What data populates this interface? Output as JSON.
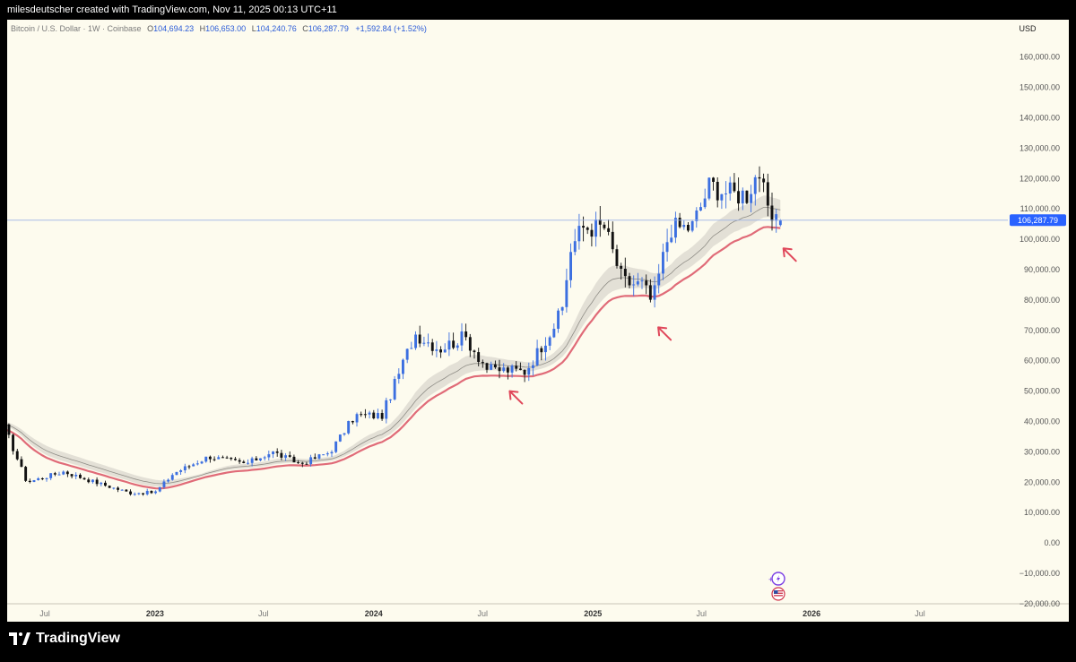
{
  "header": {
    "credit": "milesdeutscher created with TradingView.com, Nov 11, 2025 00:13 UTC+11"
  },
  "legend": {
    "symbol": "Bitcoin / U.S. Dollar · 1W · Coinbase",
    "open_label": "O",
    "open": "104,694.23",
    "high_label": "H",
    "high": "106,653.00",
    "low_label": "L",
    "low": "104,240.76",
    "close_label": "C",
    "close": "106,287.79",
    "change": "+1,592.84 (+1.52%)"
  },
  "price_axis": {
    "currency": "USD",
    "current_price": "106,287.79",
    "ticks": [
      "160,000.00",
      "150,000.00",
      "140,000.00",
      "130,000.00",
      "120,000.00",
      "110,000.00",
      "100,000.00",
      "90,000.00",
      "80,000.00",
      "70,000.00",
      "60,000.00",
      "50,000.00",
      "40,000.00",
      "30,000.00",
      "20,000.00",
      "10,000.00",
      "0.00",
      "−10,000.00",
      "−20,000.00"
    ]
  },
  "time_axis": {
    "ticks": [
      "Jul",
      "2023",
      "Jul",
      "2024",
      "Jul",
      "2025",
      "Jul",
      "2026",
      "Jul"
    ]
  },
  "footer": {
    "brand": "TradingView"
  },
  "colors": {
    "up": "#3c6fe0",
    "down": "#111111",
    "ema_red": "#e06b78",
    "band": "#d9d7cf",
    "background": "#fdfbee"
  },
  "chart_data": {
    "type": "candlestick",
    "title": "",
    "xlabel": "",
    "ylabel": "",
    "ylim": [
      -20000,
      160000
    ],
    "y_ticks": [
      160000,
      150000,
      140000,
      130000,
      120000,
      110000,
      100000,
      90000,
      80000,
      70000,
      60000,
      50000,
      40000,
      30000,
      20000,
      10000,
      0,
      -10000,
      -20000
    ],
    "x_ticks": [
      {
        "label": "Jul",
        "date": "2022-07-01"
      },
      {
        "label": "2023",
        "date": "2023-01-01"
      },
      {
        "label": "Jul",
        "date": "2023-07-01"
      },
      {
        "label": "2024",
        "date": "2024-01-01"
      },
      {
        "label": "Jul",
        "date": "2024-07-01"
      },
      {
        "label": "2025",
        "date": "2025-01-01"
      },
      {
        "label": "Jul",
        "date": "2025-07-01"
      },
      {
        "label": "2026",
        "date": "2026-01-01"
      },
      {
        "label": "Jul",
        "date": "2026-07-01"
      }
    ],
    "x_range": [
      "2022-04-25",
      "2026-10-01"
    ],
    "last_price": 106287.79,
    "series": [
      {
        "date": "2022-04-25",
        "close": 38000
      },
      {
        "date": "2022-06-01",
        "close": 20000
      },
      {
        "date": "2022-08-01",
        "close": 23500
      },
      {
        "date": "2022-10-01",
        "close": 19500
      },
      {
        "date": "2022-11-20",
        "close": 16500
      },
      {
        "date": "2023-01-01",
        "close": 16600
      },
      {
        "date": "2023-02-01",
        "close": 23000
      },
      {
        "date": "2023-04-01",
        "close": 28500
      },
      {
        "date": "2023-06-01",
        "close": 26000
      },
      {
        "date": "2023-07-15",
        "close": 30000
      },
      {
        "date": "2023-09-01",
        "close": 26000
      },
      {
        "date": "2023-10-20",
        "close": 30000
      },
      {
        "date": "2023-12-01",
        "close": 42000
      },
      {
        "date": "2024-01-15",
        "close": 42000
      },
      {
        "date": "2024-03-10",
        "close": 69000
      },
      {
        "date": "2024-04-20",
        "close": 64000
      },
      {
        "date": "2024-06-01",
        "close": 68000
      },
      {
        "date": "2024-07-10",
        "close": 57000
      },
      {
        "date": "2024-08-10",
        "close": 57000
      },
      {
        "date": "2024-09-10",
        "close": 56500
      },
      {
        "date": "2024-10-01",
        "close": 63000
      },
      {
        "date": "2024-11-10",
        "close": 76000
      },
      {
        "date": "2024-11-25",
        "close": 97000
      },
      {
        "date": "2024-12-15",
        "close": 104000
      },
      {
        "date": "2025-01-20",
        "close": 104000
      },
      {
        "date": "2025-02-20",
        "close": 86000
      },
      {
        "date": "2025-03-25",
        "close": 85000
      },
      {
        "date": "2025-04-10",
        "close": 79000
      },
      {
        "date": "2025-05-10",
        "close": 104000
      },
      {
        "date": "2025-06-15",
        "close": 104000
      },
      {
        "date": "2025-07-15",
        "close": 118000
      },
      {
        "date": "2025-08-20",
        "close": 115000
      },
      {
        "date": "2025-09-15",
        "close": 115000
      },
      {
        "date": "2025-10-05",
        "close": 123000
      },
      {
        "date": "2025-10-20",
        "close": 108000
      },
      {
        "date": "2025-11-03",
        "close": 104700
      },
      {
        "date": "2025-11-10",
        "open": 104694.23,
        "high": 106653.0,
        "low": 104240.76,
        "close": 106287.79
      }
    ],
    "annotations": [
      {
        "type": "arrow",
        "date": "2024-08-15",
        "price": 50000
      },
      {
        "type": "arrow",
        "date": "2025-04-20",
        "price": 71000
      },
      {
        "type": "arrow",
        "date": "2025-11-15",
        "price": 97000
      }
    ]
  }
}
